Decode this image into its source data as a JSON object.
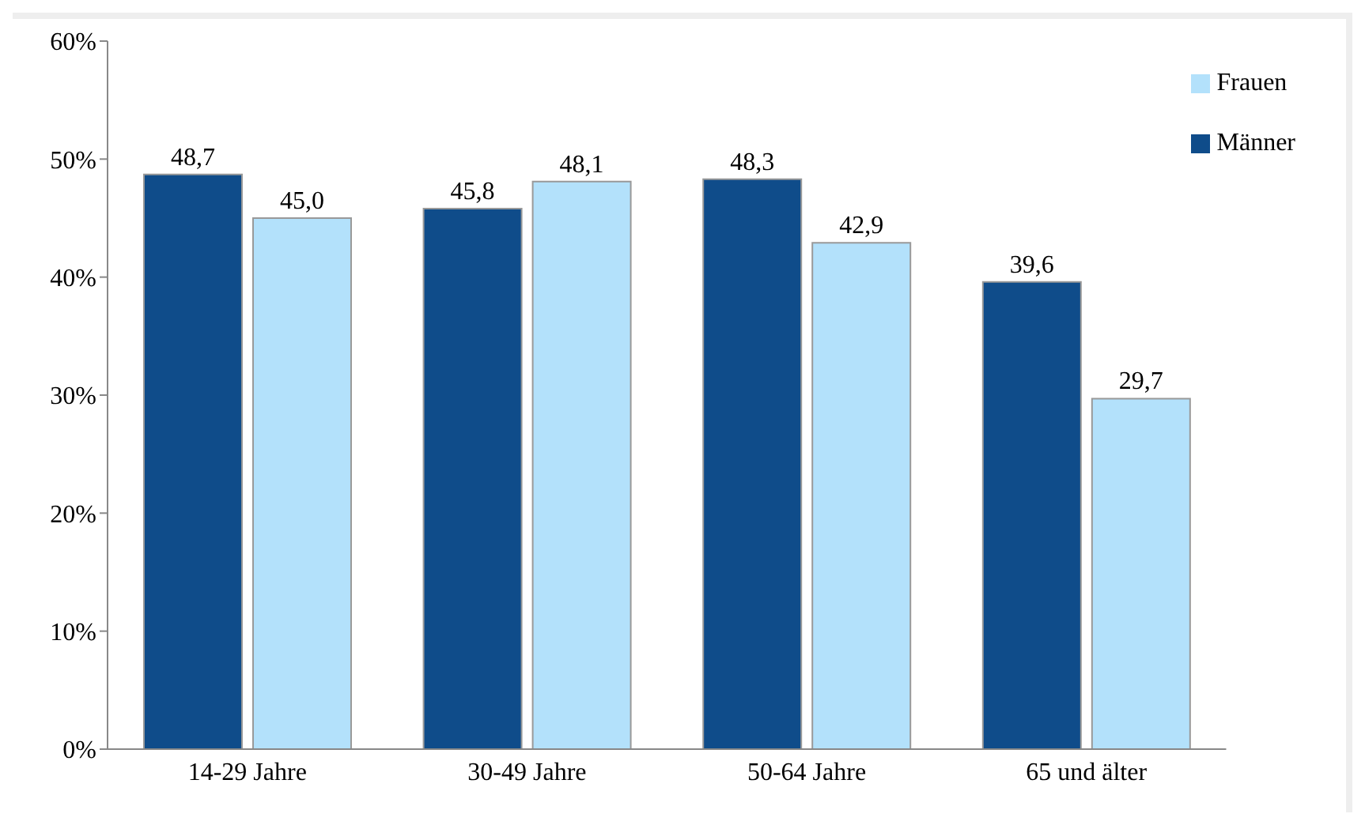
{
  "chart_data": {
    "type": "bar",
    "categories": [
      "14-29 Jahre",
      "30-49 Jahre",
      "50-64 Jahre",
      "65 und älter"
    ],
    "series": [
      {
        "name": "Männer",
        "color": "#0f4c8a",
        "values": [
          48.7,
          45.8,
          48.3,
          39.6
        ],
        "value_labels": [
          "48,7",
          "45,8",
          "48,3",
          "39,6"
        ]
      },
      {
        "name": "Frauen",
        "color": "#b3e1fb",
        "values": [
          45.0,
          48.1,
          42.9,
          29.7
        ],
        "value_labels": [
          "45,0",
          "48,1",
          "42,9",
          "29,7"
        ]
      }
    ],
    "ylim": [
      0,
      60
    ],
    "yticks": [
      {
        "value": 0,
        "label": "0%"
      },
      {
        "value": 10,
        "label": "10%"
      },
      {
        "value": 20,
        "label": "20%"
      },
      {
        "value": 30,
        "label": "30%"
      },
      {
        "value": 40,
        "label": "40%"
      },
      {
        "value": 50,
        "label": "50%"
      },
      {
        "value": 60,
        "label": "60%"
      }
    ],
    "grid": false,
    "legend": "top right"
  }
}
